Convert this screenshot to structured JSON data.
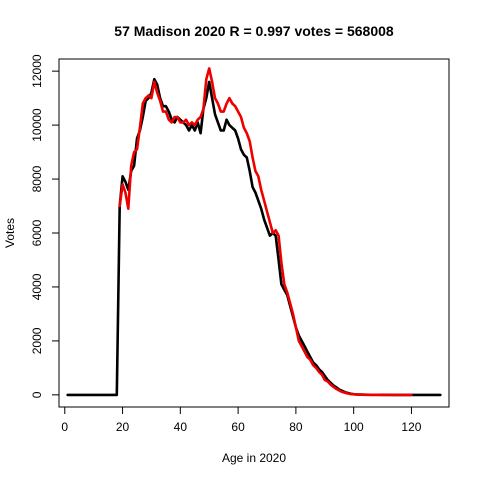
{
  "chart_data": {
    "type": "line",
    "title": "57 Madison 2020 R = 0.997 votes = 568008",
    "xlabel": "Age in 2020",
    "ylabel": "Votes",
    "xlim": [
      -2,
      133
    ],
    "ylim": [
      -450,
      12450
    ],
    "xticks": [
      0,
      20,
      40,
      60,
      80,
      100,
      120
    ],
    "yticks": [
      0,
      2000,
      4000,
      6000,
      8000,
      10000,
      12000
    ],
    "grid": false,
    "legend": "none",
    "series": [
      {
        "color": "#000000",
        "x": [
          1,
          2,
          4,
          6,
          8,
          10,
          12,
          14,
          16,
          18,
          19,
          20,
          21,
          22,
          23,
          24,
          25,
          26,
          27,
          28,
          29,
          30,
          31,
          32,
          33,
          34,
          35,
          36,
          37,
          38,
          39,
          40,
          41,
          42,
          43,
          44,
          45,
          46,
          47,
          48,
          49,
          50,
          51,
          52,
          53,
          54,
          55,
          56,
          57,
          58,
          59,
          60,
          61,
          62,
          63,
          64,
          65,
          66,
          67,
          68,
          69,
          70,
          71,
          72,
          73,
          74,
          75,
          76,
          77,
          78,
          79,
          80,
          81,
          82,
          83,
          84,
          85,
          86,
          87,
          88,
          89,
          90,
          91,
          92,
          93,
          94,
          95,
          96,
          97,
          98,
          99,
          100,
          101,
          102,
          104,
          106,
          108,
          110,
          115,
          120,
          125,
          130
        ],
        "y": [
          0,
          0,
          0,
          0,
          0,
          0,
          0,
          0,
          0,
          0,
          7000,
          8100,
          7900,
          7600,
          8300,
          8500,
          9500,
          9800,
          10300,
          10900,
          11000,
          11200,
          11700,
          11500,
          11000,
          10700,
          10700,
          10500,
          10200,
          10100,
          10300,
          10200,
          10100,
          10000,
          9800,
          10000,
          9800,
          10100,
          9700,
          10600,
          11000,
          11600,
          11000,
          10400,
          10100,
          9800,
          9800,
          10200,
          10000,
          9900,
          9800,
          9500,
          9100,
          8900,
          8800,
          8300,
          7700,
          7500,
          7200,
          6900,
          6500,
          6200,
          5900,
          6000,
          5900,
          5000,
          4100,
          3900,
          3700,
          3300,
          2900,
          2500,
          2200,
          2000,
          1800,
          1600,
          1400,
          1200,
          1100,
          950,
          850,
          700,
          550,
          450,
          350,
          280,
          200,
          150,
          100,
          70,
          40,
          25,
          15,
          10,
          5,
          3,
          2,
          1,
          0,
          0,
          0,
          0
        ]
      },
      {
        "color": "#ee0000",
        "x": [
          19,
          20,
          21,
          22,
          23,
          24,
          25,
          26,
          27,
          28,
          29,
          30,
          31,
          32,
          33,
          34,
          35,
          36,
          37,
          38,
          39,
          40,
          41,
          42,
          43,
          44,
          45,
          46,
          47,
          48,
          49,
          50,
          51,
          52,
          53,
          54,
          55,
          56,
          57,
          58,
          59,
          60,
          61,
          62,
          63,
          64,
          65,
          66,
          67,
          68,
          69,
          70,
          71,
          72,
          73,
          74,
          75,
          76,
          77,
          78,
          79,
          80,
          81,
          82,
          83,
          84,
          85,
          86,
          87,
          88,
          89,
          90,
          91,
          92,
          93,
          94,
          95,
          96,
          97,
          98,
          99,
          100,
          101,
          102,
          104,
          106,
          108,
          110,
          112,
          120
        ],
        "y": [
          7000,
          7800,
          7500,
          6900,
          8500,
          9000,
          9100,
          9900,
          10800,
          11000,
          11100,
          11000,
          11600,
          11200,
          10900,
          10500,
          10500,
          10200,
          10100,
          10300,
          10300,
          10100,
          10100,
          10200,
          10000,
          10100,
          10000,
          10200,
          10300,
          10600,
          11700,
          12100,
          11600,
          11000,
          10800,
          10500,
          10500,
          10800,
          11000,
          10800,
          10700,
          10500,
          10300,
          9900,
          9700,
          9400,
          8800,
          8300,
          8100,
          7600,
          7200,
          6800,
          6400,
          6000,
          6100,
          5900,
          4900,
          4100,
          3800,
          3400,
          3000,
          2500,
          2000,
          1800,
          1600,
          1400,
          1300,
          1100,
          1000,
          850,
          750,
          550,
          500,
          380,
          300,
          220,
          160,
          110,
          80,
          50,
          30,
          20,
          12,
          8,
          4,
          2,
          1,
          0,
          0,
          0
        ]
      }
    ]
  }
}
